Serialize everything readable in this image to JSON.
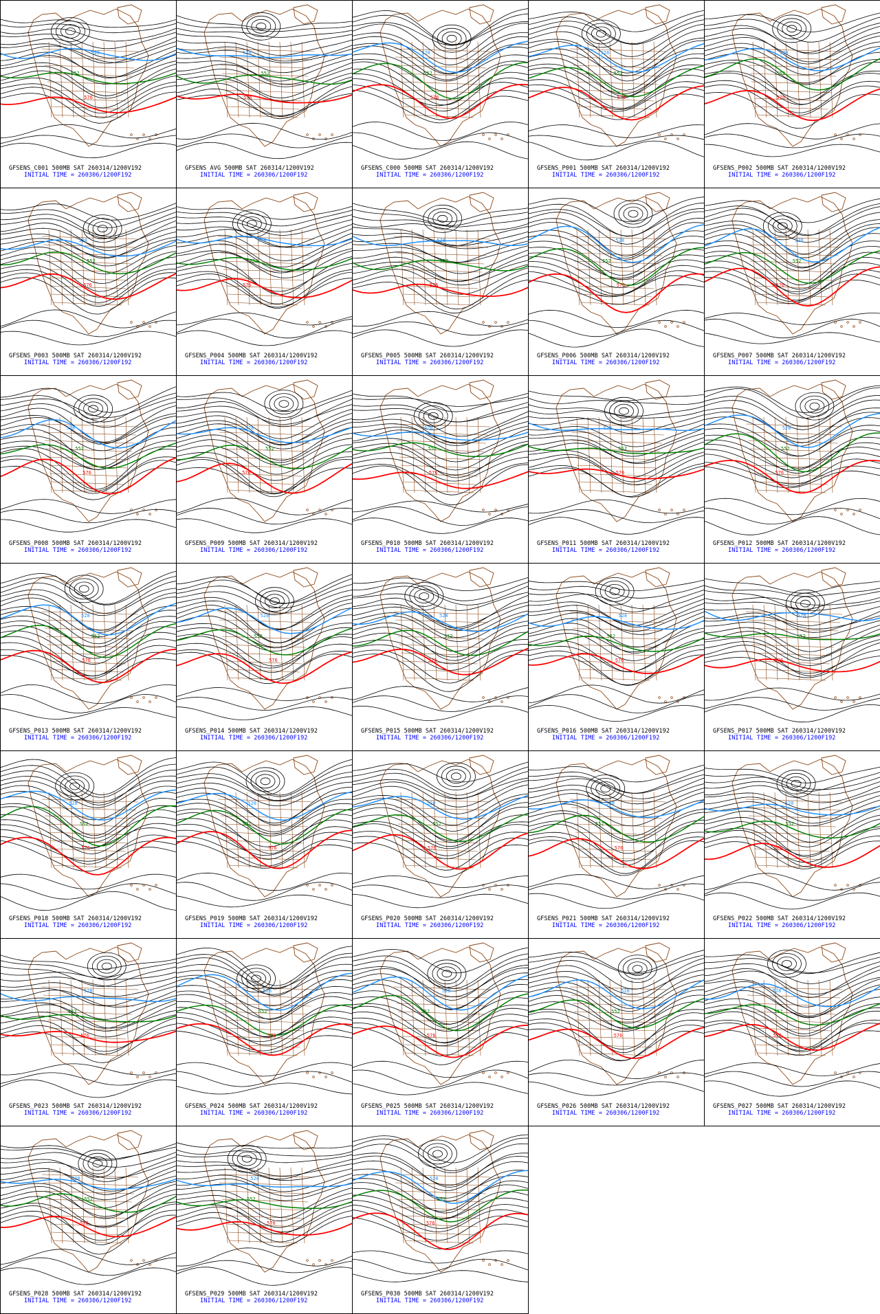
{
  "initial_time_prefix": "INITIAL TIME = ",
  "initial_time": "260306/1200F192",
  "field_suffix": "500MB SAT 260314/1200V192",
  "colors": {
    "background": "#ffffff",
    "contours": "#000000",
    "map_outlines": "#8b4513",
    "contour_528": "#1e90ff",
    "contour_552": "#008000",
    "contour_576": "#ff0000",
    "initial_time_text": "#0000ff"
  },
  "contour_labels": {
    "blue": "528",
    "green": "552",
    "red": "576"
  },
  "panels": [
    {
      "member": "GFSENS_C001"
    },
    {
      "member": "GFSENS AVG"
    },
    {
      "member": "GFSENS_C000"
    },
    {
      "member": "GFSENS_P001"
    },
    {
      "member": "GFSENS_P002"
    },
    {
      "member": "GFSENS_P003"
    },
    {
      "member": "GFSENS_P004"
    },
    {
      "member": "GFSENS_P005"
    },
    {
      "member": "GFSENS_P006"
    },
    {
      "member": "GFSENS_P007"
    },
    {
      "member": "GFSENS_P008"
    },
    {
      "member": "GFSENS_P009"
    },
    {
      "member": "GFSENS_P010"
    },
    {
      "member": "GFSENS_P011"
    },
    {
      "member": "GFSENS_P012"
    },
    {
      "member": "GFSENS_P013"
    },
    {
      "member": "GFSENS_P014"
    },
    {
      "member": "GFSENS_P015"
    },
    {
      "member": "GFSENS_P016"
    },
    {
      "member": "GFSENS_P017"
    },
    {
      "member": "GFSENS_P018"
    },
    {
      "member": "GFSENS_P019"
    },
    {
      "member": "GFSENS_P020"
    },
    {
      "member": "GFSENS_P021"
    },
    {
      "member": "GFSENS_P022"
    },
    {
      "member": "GFSENS_P023"
    },
    {
      "member": "GFSENS_P024"
    },
    {
      "member": "GFSENS_P025"
    },
    {
      "member": "GFSENS_P026"
    },
    {
      "member": "GFSENS_P027"
    },
    {
      "member": "GFSENS_P028"
    },
    {
      "member": "GFSENS_P029"
    },
    {
      "member": "GFSENS_P030"
    }
  ]
}
